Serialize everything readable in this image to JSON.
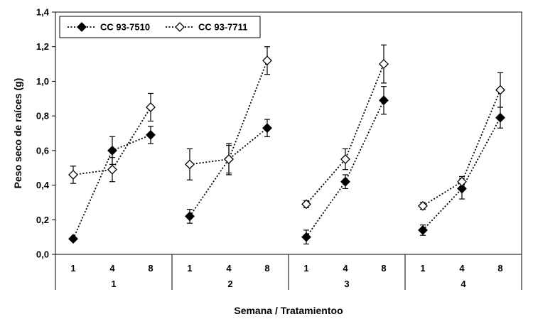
{
  "chart_data": {
    "type": "line",
    "xlabel": "Semana / Tratamientoo",
    "ylabel": "Peso seco de raíces (g)",
    "ylim": [
      0,
      1.4
    ],
    "y_ticks": [
      "0,0",
      "0,2",
      "0,4",
      "0,6",
      "0,8",
      "1,0",
      "1,2",
      "1,4"
    ],
    "y_tick_values": [
      0,
      0.2,
      0.4,
      0.6,
      0.8,
      1.0,
      1.2,
      1.4
    ],
    "groups": [
      "1",
      "2",
      "3",
      "4"
    ],
    "weeks": [
      "1",
      "4",
      "8"
    ],
    "grid": false,
    "legend_position": "top-left",
    "series": [
      {
        "name": "CC 93-7510",
        "marker": "filled-diamond",
        "groups": [
          {
            "values": [
              0.09,
              0.6,
              0.69
            ],
            "errors": [
              0.01,
              0.08,
              0.05
            ]
          },
          {
            "values": [
              0.22,
              0.55,
              0.73
            ],
            "errors": [
              0.04,
              0.08,
              0.05
            ]
          },
          {
            "values": [
              0.1,
              0.42,
              0.89
            ],
            "errors": [
              0.04,
              0.04,
              0.08
            ]
          },
          {
            "values": [
              0.14,
              0.38,
              0.79
            ],
            "errors": [
              0.03,
              0.06,
              0.06
            ]
          }
        ]
      },
      {
        "name": "CC 93-7711",
        "marker": "open-diamond",
        "groups": [
          {
            "values": [
              0.46,
              0.49,
              0.85
            ],
            "errors": [
              0.05,
              0.07,
              0.08
            ]
          },
          {
            "values": [
              0.52,
              0.55,
              1.12
            ],
            "errors": [
              0.09,
              0.09,
              0.08
            ]
          },
          {
            "values": [
              0.29,
              0.55,
              1.1
            ],
            "errors": [
              0.02,
              0.06,
              0.11
            ]
          },
          {
            "values": [
              0.28,
              0.42,
              0.95
            ],
            "errors": [
              0.02,
              0.03,
              0.1
            ]
          }
        ]
      }
    ]
  }
}
